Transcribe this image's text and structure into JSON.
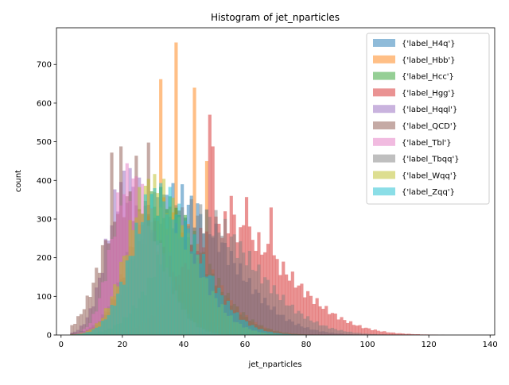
{
  "chart_data": {
    "type": "bar",
    "title": "Histogram of jet_nparticles",
    "xlabel": "jet_nparticles",
    "ylabel": "count",
    "xlim": [
      -1.5,
      141.5
    ],
    "ylim": [
      0,
      795
    ],
    "xticks": [
      0,
      20,
      40,
      60,
      80,
      100,
      120,
      140
    ],
    "yticks": [
      0,
      100,
      200,
      300,
      400,
      500,
      600,
      700
    ],
    "grid": false,
    "legend_position": "top-right",
    "opacity": 0.5,
    "series": [
      {
        "name": "{'label_H4q'}",
        "color": "#1f77b4",
        "peak_x": 36,
        "width": 13.5,
        "peak": 398
      },
      {
        "name": "{'label_Hbb'}",
        "color": "#ff7f0e",
        "peak_x": 31,
        "width": 11.0,
        "peak": 370,
        "spikes": [
          [
            32.5,
            662
          ],
          [
            37.5,
            757
          ],
          [
            43.5,
            640
          ],
          [
            47.5,
            498
          ],
          [
            47.0,
            450
          ]
        ]
      },
      {
        "name": "{'label_Hcc'}",
        "color": "#2ca02c",
        "peak_x": 31,
        "width": 11.0,
        "peak": 385
      },
      {
        "name": "{'label_Hgg'}",
        "color": "#d62728",
        "peak_x": 52,
        "width": 15.0,
        "peak": 322,
        "spikes": [
          [
            48.5,
            570
          ],
          [
            49.5,
            488
          ],
          [
            55.5,
            360
          ],
          [
            60.5,
            357
          ],
          [
            68.5,
            330
          ]
        ]
      },
      {
        "name": "{'label_Hqql'}",
        "color": "#9467bd",
        "peak_x": 21,
        "width": 7.5,
        "peak": 450
      },
      {
        "name": "{'label_QCD'}",
        "color": "#8c564b",
        "peak_x": 21,
        "width": 9.5,
        "peak": 395,
        "spikes": [
          [
            16.5,
            472
          ],
          [
            19.5,
            488
          ],
          [
            24.5,
            464
          ],
          [
            28.5,
            498
          ]
        ]
      },
      {
        "name": "{'label_Tbl'}",
        "color": "#e377c2",
        "peak_x": 22,
        "width": 7.0,
        "peak": 450
      },
      {
        "name": "{'label_Tbqq'}",
        "color": "#7f7f7f",
        "peak_x": 43,
        "width": 14.0,
        "peak": 352
      },
      {
        "name": "{'label_Wqq'}",
        "color": "#bcbd22",
        "peak_x": 29,
        "width": 9.5,
        "peak": 430
      },
      {
        "name": "{'label_Zqq'}",
        "color": "#17becf",
        "peak_x": 31,
        "width": 10.0,
        "peak": 405
      }
    ]
  }
}
